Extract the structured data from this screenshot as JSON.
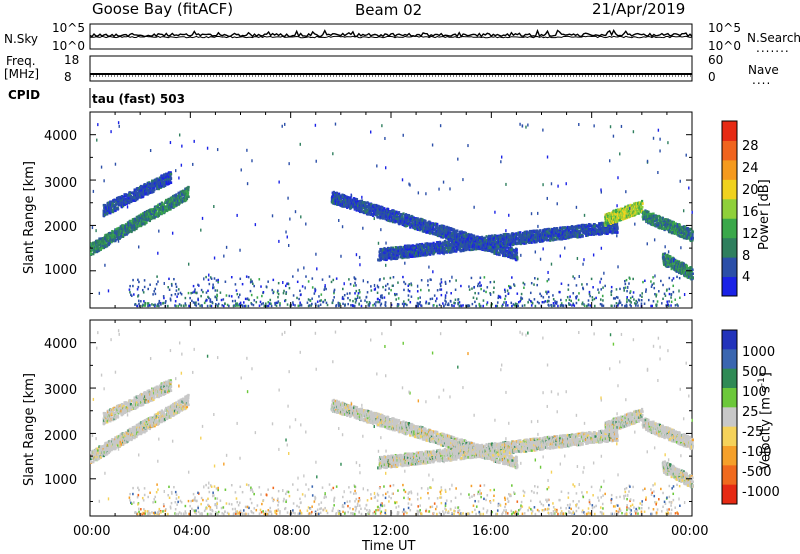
{
  "header": {
    "station": "Goose Bay (fitACF)",
    "beam": "Beam 02",
    "date": "21/Apr/2019"
  },
  "top_panels": {
    "nsky_label": "N.Sky",
    "nsky_ticks": [
      "10^5",
      "10^0"
    ],
    "nsearch_label": "N.Search",
    "nsearch_ticks": [
      "10^5",
      "10^0"
    ],
    "nsearch_dots": ".......",
    "freq_label_1": "Freq.",
    "freq_label_2": "[MHz]",
    "freq_ticks": [
      "18",
      "8"
    ],
    "nave_label": "Nave",
    "nave_ticks": [
      "60",
      "0"
    ],
    "nave_dots": "....",
    "cpid_label": "CPID",
    "cpid_value": "tau (fast) 503"
  },
  "colors": {
    "power_scale": [
      "#1a22e6",
      "#2b4fa8",
      "#2f7f5e",
      "#3aa84a",
      "#8fd03a",
      "#f0d21e",
      "#f59a1e",
      "#f0641e",
      "#e62a14"
    ],
    "velocity_scale": [
      "#2233bb",
      "#3a66b0",
      "#2f8a55",
      "#6cc83a",
      "#c8c8c8",
      "#f5d25a",
      "#f5a02a",
      "#f06a1e",
      "#e62a14"
    ],
    "frame": "#000000"
  },
  "chart_data": [
    {
      "type": "heatmap",
      "title": "Power",
      "xlabel": "Time UT",
      "ylabel": "Slant Range [km]",
      "x_ticks": [
        "00:00",
        "04:00",
        "08:00",
        "12:00",
        "16:00",
        "20:00",
        "00:00"
      ],
      "y_ticks": [
        "1000",
        "2000",
        "3000",
        "4000"
      ],
      "ylim": [
        180,
        4500
      ],
      "xlim": [
        0,
        24
      ],
      "colorbar_label": "Power [dB]",
      "colorbar_ticks": [
        "4",
        "8",
        "12",
        "16",
        "20",
        "24",
        "28"
      ],
      "echo_bands": [
        {
          "t0": 0.0,
          "t1": 3.9,
          "r0": 1500,
          "r1": 2750,
          "level": "medium"
        },
        {
          "t0": 0.5,
          "t1": 3.2,
          "r0": 2350,
          "r1": 3100,
          "level": "low"
        },
        {
          "t0": 9.6,
          "t1": 17.0,
          "r0": 2650,
          "r1": 1380,
          "level": "low"
        },
        {
          "t0": 11.5,
          "t1": 21.0,
          "r0": 1380,
          "r1": 2000,
          "level": "low"
        },
        {
          "t0": 20.5,
          "t1": 22.0,
          "r0": 2150,
          "r1": 2450,
          "level": "high"
        },
        {
          "t0": 22.0,
          "t1": 24.0,
          "r0": 2250,
          "r1": 1800,
          "level": "medium"
        },
        {
          "t0": 22.8,
          "t1": 24.0,
          "r0": 1300,
          "r1": 950,
          "level": "medium"
        }
      ]
    },
    {
      "type": "heatmap",
      "title": "Velocity",
      "xlabel": "Time UT",
      "ylabel": "Slant Range [km]",
      "x_ticks": [
        "00:00",
        "04:00",
        "08:00",
        "12:00",
        "16:00",
        "20:00",
        "00:00"
      ],
      "y_ticks": [
        "1000",
        "2000",
        "3000",
        "4000"
      ],
      "ylim": [
        180,
        4500
      ],
      "xlim": [
        0,
        24
      ],
      "colorbar_label": "Velocity [m s^-1]",
      "colorbar_ticks": [
        "1000",
        "500",
        "100",
        "25",
        "-25",
        "-100",
        "-500",
        "-1000"
      ],
      "dominant_value": "-25 to 25"
    }
  ],
  "axis": {
    "xlabel": "Time UT",
    "power_cb_label": "Power [dB]",
    "velocity_cb_label": "Velocity [m s",
    "velocity_cb_sup": "-1",
    "velocity_cb_close": "]"
  }
}
